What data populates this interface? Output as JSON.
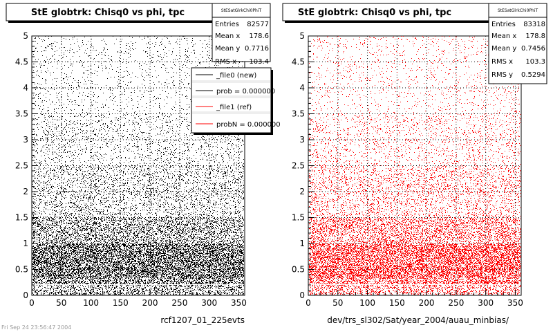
{
  "footer_text": "Fri Sep 24 23:56:47 2004",
  "chart_data": [
    {
      "type": "scatter",
      "title": "StE globtrk: Chisq0 vs phi, tpc",
      "xlabel": "rcf1207_01_225evts",
      "ylabel": "",
      "xlim": [
        0,
        360
      ],
      "ylim": [
        0,
        5
      ],
      "x_ticks": [
        0,
        50,
        100,
        150,
        200,
        250,
        300,
        350
      ],
      "y_ticks": [
        0,
        0.5,
        1,
        1.5,
        2,
        2.5,
        3,
        3.5,
        4,
        4.5,
        5
      ],
      "grid": true,
      "color": "#000000",
      "density_profile": [
        {
          "y_range": [
            0,
            0.2
          ],
          "density": 0.45
        },
        {
          "y_range": [
            0.2,
            0.3
          ],
          "density": 0.75
        },
        {
          "y_range": [
            0.3,
            1.0
          ],
          "density": 1.0
        },
        {
          "y_range": [
            1.0,
            1.5
          ],
          "density": 0.5
        },
        {
          "y_range": [
            1.5,
            2.5
          ],
          "density": 0.22
        },
        {
          "y_range": [
            2.5,
            3.5
          ],
          "density": 0.12
        },
        {
          "y_range": [
            3.5,
            5.0
          ],
          "density": 0.06
        }
      ],
      "stats": {
        "header": "StESatGlrkChi0PhiT",
        "rows": [
          {
            "label": "Entries",
            "value": "82577"
          },
          {
            "label": "Mean x",
            "value": "178.6"
          },
          {
            "label": "Mean y",
            "value": "0.7716"
          },
          {
            "label": "RMS x",
            "value": "103.4"
          }
        ]
      },
      "legend": {
        "placement": "top-right",
        "entries": [
          {
            "label": "_file0 (new)",
            "color": "#000000"
          },
          {
            "label": "prob = 0.000000",
            "color": "#000000"
          },
          {
            "label": "_file1 (ref)",
            "color": "#ff0000"
          },
          {
            "label": "probN = 0.000000",
            "color": "#ff0000"
          }
        ]
      }
    },
    {
      "type": "scatter",
      "title": "StE globtrk: Chisq0 vs phi, tpc",
      "xlabel": "dev/trs_sl302/Sat/year_2004/auau_minbias/",
      "ylabel": "",
      "xlim": [
        0,
        360
      ],
      "ylim": [
        0,
        5
      ],
      "x_ticks": [
        0,
        50,
        100,
        150,
        200,
        250,
        300,
        350
      ],
      "y_ticks": [
        0,
        0.5,
        1,
        1.5,
        2,
        2.5,
        3,
        3.5,
        4,
        4.5,
        5
      ],
      "grid": true,
      "color": "#ff0000",
      "density_profile": [
        {
          "y_range": [
            0,
            0.2
          ],
          "density": 0.45
        },
        {
          "y_range": [
            0.2,
            0.3
          ],
          "density": 0.75
        },
        {
          "y_range": [
            0.3,
            1.0
          ],
          "density": 1.0
        },
        {
          "y_range": [
            1.0,
            1.5
          ],
          "density": 0.5
        },
        {
          "y_range": [
            1.5,
            2.5
          ],
          "density": 0.22
        },
        {
          "y_range": [
            2.5,
            3.5
          ],
          "density": 0.12
        },
        {
          "y_range": [
            3.5,
            5.0
          ],
          "density": 0.06
        }
      ],
      "stats": {
        "header": "StESatGlrkChi0PhiT",
        "rows": [
          {
            "label": "Entries",
            "value": "83318"
          },
          {
            "label": "Mean x",
            "value": "178.8"
          },
          {
            "label": "Mean y",
            "value": "0.7456"
          },
          {
            "label": "RMS x",
            "value": "103.3"
          },
          {
            "label": "RMS y",
            "value": "0.5294"
          }
        ]
      }
    }
  ]
}
